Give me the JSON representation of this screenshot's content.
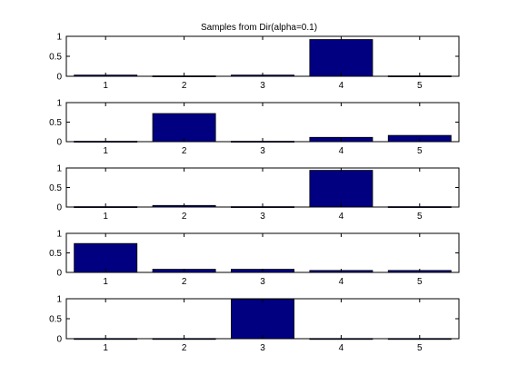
{
  "figure": {
    "title": "Samples from Dir(alpha=0.1)"
  },
  "colors": {
    "bar_fill": "#000080",
    "axes_stroke": "#000000",
    "background": "#ffffff"
  },
  "chart_data": [
    {
      "type": "bar",
      "title": "Samples from Dir(alpha=0.1)",
      "categories": [
        "1",
        "2",
        "3",
        "4",
        "5"
      ],
      "values": [
        0.03,
        0.01,
        0.03,
        0.92,
        0.01
      ],
      "ylim": [
        0,
        1
      ],
      "yticks": [
        "0",
        "0.5",
        "1"
      ],
      "grid": false
    },
    {
      "type": "bar",
      "categories": [
        "1",
        "2",
        "3",
        "4",
        "5"
      ],
      "values": [
        0.01,
        0.72,
        0.01,
        0.11,
        0.16
      ],
      "ylim": [
        0,
        1
      ],
      "yticks": [
        "0",
        "0.5",
        "1"
      ],
      "grid": false
    },
    {
      "type": "bar",
      "categories": [
        "1",
        "2",
        "3",
        "4",
        "5"
      ],
      "values": [
        0.01,
        0.04,
        0.01,
        0.94,
        0.01
      ],
      "ylim": [
        0,
        1
      ],
      "yticks": [
        "0",
        "0.5",
        "1"
      ],
      "grid": false
    },
    {
      "type": "bar",
      "categories": [
        "1",
        "2",
        "3",
        "4",
        "5"
      ],
      "values": [
        0.74,
        0.08,
        0.08,
        0.05,
        0.05
      ],
      "ylim": [
        0,
        1
      ],
      "yticks": [
        "0",
        "0.5",
        "1"
      ],
      "grid": false
    },
    {
      "type": "bar",
      "categories": [
        "1",
        "2",
        "3",
        "4",
        "5"
      ],
      "values": [
        0.005,
        0.005,
        0.99,
        0.005,
        0.005
      ],
      "ylim": [
        0,
        1
      ],
      "yticks": [
        "0",
        "0.5",
        "1"
      ],
      "grid": false
    }
  ]
}
